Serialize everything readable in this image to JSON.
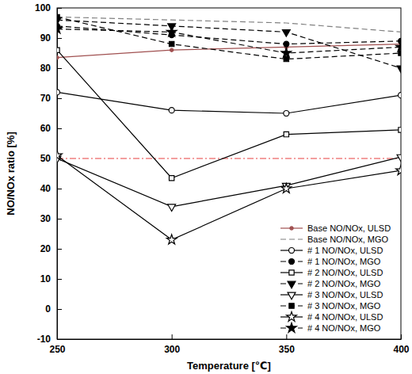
{
  "chart_data": {
    "type": "line",
    "x_label": "Temperature [℃]",
    "y_label": "NO/NOx ratio [%]",
    "x": [
      250,
      300,
      350,
      400
    ],
    "xlim": [
      250,
      400
    ],
    "xticks": [
      250,
      300,
      350,
      400
    ],
    "ylim": [
      -10,
      100
    ],
    "yticks": [
      -10,
      0,
      10,
      20,
      30,
      40,
      50,
      60,
      70,
      80,
      90,
      100
    ],
    "grid": false,
    "legend": "lower right",
    "hlines": [
      {
        "value": 50,
        "color": "#f08080",
        "line_style": "dashdot"
      }
    ],
    "series": [
      {
        "name": "Base NO/NOx, ULSD",
        "color": "#a05050",
        "marker": "dot",
        "line_style": "solid",
        "values": [
          83.5,
          86,
          87,
          88
        ]
      },
      {
        "name": "Base NO/NOx, MGO",
        "color": "#808080",
        "marker": "none",
        "line_style": "dashed",
        "values": [
          97,
          96,
          95,
          92
        ]
      },
      {
        "name": "# 1 NO/NOx, ULSD",
        "color": "#000000",
        "marker": "circle-open",
        "line_style": "solid",
        "values": [
          72,
          66,
          65,
          71
        ]
      },
      {
        "name": "# 1 NO/NOx, MGO",
        "color": "#000000",
        "marker": "circle",
        "line_style": "dashed",
        "values": [
          94,
          91,
          88,
          89
        ]
      },
      {
        "name": "# 2 NO/NOx, ULSD",
        "color": "#000000",
        "marker": "square-open",
        "line_style": "solid",
        "values": [
          86,
          43.5,
          58,
          59.5
        ]
      },
      {
        "name": "# 2 NO/NOx, MGO",
        "color": "#000000",
        "marker": "triangle-down",
        "line_style": "dashed",
        "values": [
          96,
          94,
          92,
          80
        ]
      },
      {
        "name": "# 3 NO/NOx, ULSD",
        "color": "#000000",
        "marker": "triangle-down-open",
        "line_style": "solid",
        "values": [
          50,
          34,
          41,
          50.5
        ]
      },
      {
        "name": "# 3 NO/NOx, MGO",
        "color": "#000000",
        "marker": "square",
        "line_style": "dashed",
        "values": [
          97,
          88,
          83,
          85
        ]
      },
      {
        "name": "# 4 NO/NOx, ULSD",
        "color": "#000000",
        "marker": "star-open",
        "line_style": "solid",
        "values": [
          51,
          23,
          40,
          46
        ]
      },
      {
        "name": "# 4 NO/NOx, MGO",
        "color": "#000000",
        "marker": "star",
        "line_style": "dashed",
        "values": [
          93,
          92,
          85,
          87
        ]
      }
    ]
  }
}
